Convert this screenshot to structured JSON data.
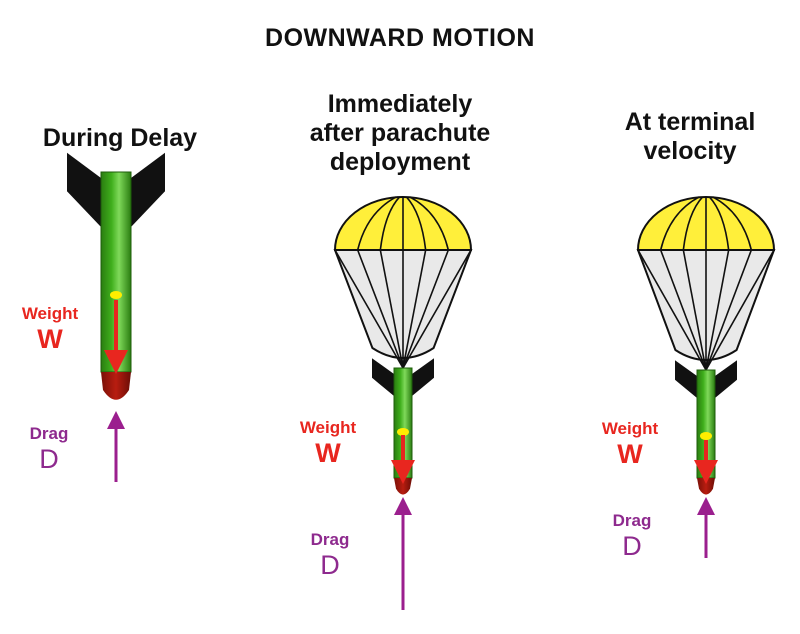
{
  "title": "DOWNWARD MOTION",
  "panels": [
    {
      "heading": "During Delay",
      "weight_label": "Weight",
      "weight_symbol": "W",
      "drag_label": "Drag",
      "drag_symbol": "D",
      "parachute": false
    },
    {
      "heading": "Immediately\nafter parachute\ndeployment",
      "weight_label": "Weight",
      "weight_symbol": "W",
      "drag_label": "Drag",
      "drag_symbol": "D",
      "parachute": true
    },
    {
      "heading": "At terminal\nvelocity",
      "weight_label": "Weight",
      "weight_symbol": "W",
      "drag_label": "Drag",
      "drag_symbol": "D",
      "parachute": true
    }
  ],
  "colors": {
    "rocket_body": "#3fae1c",
    "rocket_fins": "#111111",
    "rocket_nose": "#b81d10",
    "parachute_top": "#ffef3a",
    "parachute_bottom": "#e9e9e9",
    "weight_arrow": "#e8261f",
    "drag_arrow": "#9b1f8e",
    "center_of_gravity": "#ffee00"
  }
}
